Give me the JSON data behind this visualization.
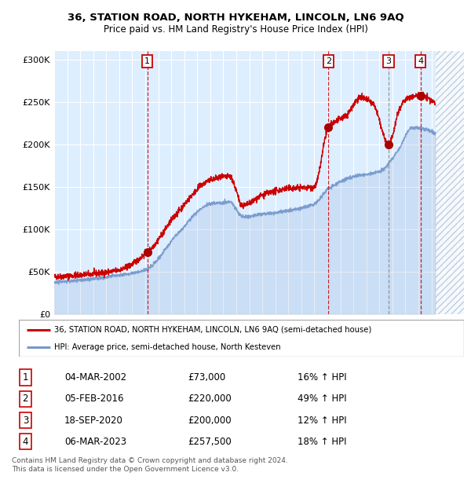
{
  "title": "36, STATION ROAD, NORTH HYKEHAM, LINCOLN, LN6 9AQ",
  "subtitle": "Price paid vs. HM Land Registry's House Price Index (HPI)",
  "ylim": [
    0,
    310000
  ],
  "xlim_start": 1995.0,
  "xlim_end": 2026.5,
  "bg_color": "#ddeeff",
  "grid_color": "#ffffff",
  "red_line_color": "#cc0000",
  "blue_line_color": "#7799cc",
  "sale_marker_color": "#aa0000",
  "purchases": [
    {
      "num": 1,
      "date": "04-MAR-2002",
      "price": 73000,
      "pct": "16%",
      "year": 2002.17
    },
    {
      "num": 2,
      "date": "05-FEB-2016",
      "price": 220000,
      "pct": "49%",
      "year": 2016.09
    },
    {
      "num": 3,
      "date": "18-SEP-2020",
      "price": 200000,
      "pct": "12%",
      "year": 2020.71
    },
    {
      "num": 4,
      "date": "06-MAR-2023",
      "price": 257500,
      "pct": "18%",
      "year": 2023.17
    }
  ],
  "legend_entries": [
    "36, STATION ROAD, NORTH HYKEHAM, LINCOLN, LN6 9AQ (semi-detached house)",
    "HPI: Average price, semi-detached house, North Kesteven"
  ],
  "footer": "Contains HM Land Registry data © Crown copyright and database right 2024.\nThis data is licensed under the Open Government Licence v3.0.",
  "ytick_labels": [
    "£0",
    "£50K",
    "£100K",
    "£150K",
    "£200K",
    "£250K",
    "£300K"
  ],
  "yticks": [
    0,
    50000,
    100000,
    150000,
    200000,
    250000,
    300000
  ],
  "table_rows": [
    [
      "1",
      "04-MAR-2002",
      "£73,000",
      "16% ↑ HPI"
    ],
    [
      "2",
      "05-FEB-2016",
      "£220,000",
      "49% ↑ HPI"
    ],
    [
      "3",
      "18-SEP-2020",
      "£200,000",
      "12% ↑ HPI"
    ],
    [
      "4",
      "06-MAR-2023",
      "£257,500",
      "18% ↑ HPI"
    ]
  ]
}
